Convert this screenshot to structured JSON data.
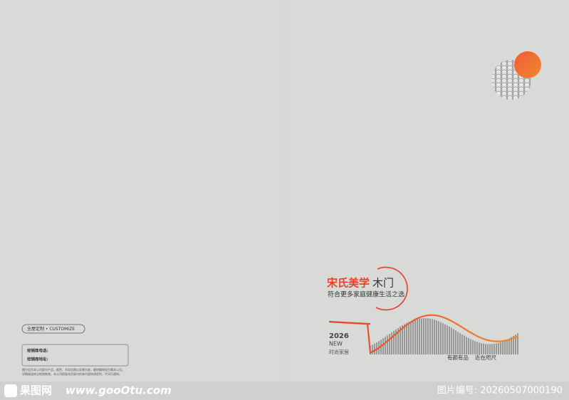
{
  "brand": {
    "name_accent": "宋氏美学",
    "name_rest": "木门",
    "slogan": "符合更多家庭健康生活之选"
  },
  "badge": {
    "year": "2026",
    "word": "NEW",
    "caption": "时尚家居"
  },
  "tagline": {
    "left": "有颜有品",
    "right": "近在咫尺"
  },
  "back": {
    "customize": "全屋定制 • CUSTOMIZE",
    "phone_label": "经销商电话:",
    "address_label": "经销商地址:",
    "notes": [
      "图片仅为本公司部分产品，颜色、木纹后期以实物为准，最终解释权归属本公司。",
      "详情请咨询当地销售商，本公司保留本目录内所有内容修改权利，不另行通知。"
    ]
  },
  "footer": {
    "site_name": "果图网",
    "url": "www.gooOtu.com",
    "image_id": "图片编号: 20260507000190"
  }
}
